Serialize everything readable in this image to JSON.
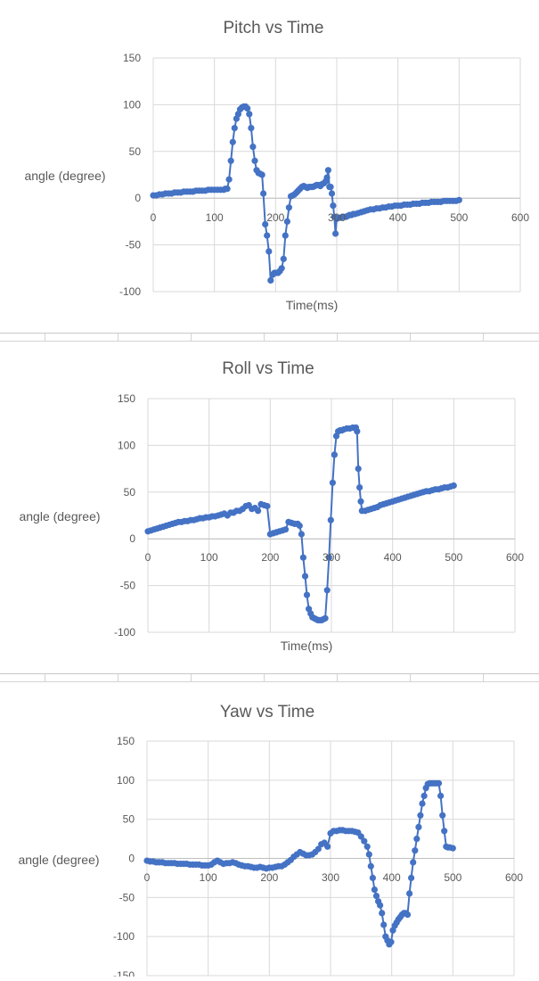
{
  "chart_data": [
    {
      "type": "scatter",
      "title": "Pitch vs Time",
      "xlabel": "Time(ms)",
      "ylabel": "angle (degree)",
      "xlim": [
        0,
        600
      ],
      "ylim": [
        -100,
        150
      ],
      "xticks": [
        0,
        100,
        200,
        300,
        400,
        500,
        600
      ],
      "yticks": [
        -100,
        -50,
        0,
        50,
        100,
        150
      ],
      "xtick_labels": [
        "0",
        "100",
        "200",
        "300",
        "400",
        "500",
        "600"
      ],
      "ytick_labels": [
        "-100",
        "-50",
        "0",
        "50",
        "100",
        "150"
      ],
      "grid": true,
      "legend": "none",
      "color": "#4472C4",
      "x": [
        0,
        5,
        10,
        15,
        20,
        25,
        30,
        35,
        40,
        45,
        50,
        55,
        60,
        65,
        70,
        75,
        80,
        85,
        90,
        95,
        100,
        105,
        110,
        115,
        118,
        121,
        124,
        127,
        130,
        133,
        136,
        139,
        142,
        145,
        148,
        151,
        154,
        157,
        160,
        163,
        166,
        169,
        172,
        175,
        178,
        180,
        183,
        186,
        189,
        192,
        195,
        198,
        201,
        204,
        207,
        210,
        213,
        216,
        219,
        222,
        225,
        228,
        231,
        234,
        237,
        240,
        243,
        246,
        249,
        252,
        255,
        258,
        261,
        264,
        267,
        270,
        273,
        276,
        279,
        282,
        284,
        286,
        288,
        290,
        292,
        294,
        296,
        298,
        300,
        303,
        306,
        309,
        312,
        315,
        318,
        321,
        324,
        327,
        330,
        335,
        340,
        345,
        350,
        355,
        360,
        365,
        370,
        375,
        380,
        385,
        390,
        395,
        400,
        405,
        410,
        415,
        420,
        425,
        430,
        435,
        440,
        445,
        450,
        455,
        460,
        465,
        470,
        475,
        480,
        485,
        490,
        495,
        500
      ],
      "y": [
        3,
        3,
        4,
        4,
        5,
        5,
        5,
        6,
        6,
        6,
        7,
        7,
        7,
        7,
        8,
        8,
        8,
        8,
        9,
        9,
        9,
        9,
        9,
        9,
        10,
        10,
        20,
        40,
        60,
        75,
        85,
        90,
        95,
        97,
        98,
        98,
        96,
        90,
        75,
        55,
        40,
        30,
        27,
        26,
        25,
        5,
        -28,
        -40,
        -57,
        -88,
        -82,
        -80,
        -80,
        -80,
        -78,
        -75,
        -65,
        -40,
        -25,
        -10,
        2,
        3,
        4,
        6,
        8,
        10,
        12,
        13,
        12,
        11,
        12,
        12,
        12,
        13,
        14,
        14,
        13,
        15,
        16,
        18,
        22,
        30,
        12,
        12,
        5,
        -8,
        -20,
        -38,
        -22,
        -21,
        -21,
        -20,
        -20,
        -20,
        -19,
        -18,
        -18,
        -17,
        -17,
        -16,
        -15,
        -14,
        -13,
        -12,
        -12,
        -11,
        -11,
        -10,
        -10,
        -9,
        -9,
        -8,
        -8,
        -8,
        -7,
        -7,
        -7,
        -6,
        -6,
        -6,
        -5,
        -5,
        -5,
        -4,
        -4,
        -4,
        -4,
        -3,
        -3,
        -3,
        -3,
        -3,
        -2
      ]
    },
    {
      "type": "scatter",
      "title": "Roll vs Time",
      "xlabel": "Time(ms)",
      "ylabel": "angle (degree)",
      "xlim": [
        0,
        600
      ],
      "ylim": [
        -100,
        150
      ],
      "xticks": [
        0,
        100,
        200,
        300,
        400,
        500,
        600
      ],
      "yticks": [
        -100,
        -50,
        0,
        50,
        100,
        150
      ],
      "xtick_labels": [
        "0",
        "100",
        "200",
        "300",
        "400",
        "500",
        "600"
      ],
      "ytick_labels": [
        "-100",
        "-50",
        "0",
        "50",
        "100",
        "150"
      ],
      "grid": true,
      "legend": "none",
      "color": "#4472C4",
      "x": [
        0,
        5,
        10,
        15,
        20,
        25,
        30,
        35,
        40,
        45,
        50,
        55,
        60,
        65,
        70,
        75,
        80,
        85,
        90,
        95,
        100,
        105,
        110,
        115,
        120,
        125,
        130,
        135,
        140,
        145,
        150,
        155,
        160,
        165,
        170,
        175,
        180,
        185,
        190,
        195,
        200,
        205,
        210,
        215,
        220,
        225,
        230,
        235,
        240,
        245,
        248,
        251,
        254,
        257,
        260,
        263,
        266,
        269,
        272,
        275,
        278,
        281,
        284,
        287,
        290,
        293,
        296,
        299,
        302,
        305,
        308,
        311,
        314,
        317,
        320,
        325,
        330,
        335,
        340,
        342,
        344,
        346,
        348,
        350,
        355,
        360,
        365,
        370,
        375,
        380,
        385,
        390,
        395,
        400,
        405,
        410,
        415,
        420,
        425,
        430,
        435,
        440,
        445,
        450,
        455,
        460,
        465,
        470,
        475,
        480,
        485,
        490,
        495,
        500
      ],
      "y": [
        8,
        9,
        10,
        11,
        12,
        13,
        14,
        15,
        16,
        17,
        18,
        18,
        19,
        19,
        20,
        20,
        21,
        22,
        22,
        23,
        23,
        24,
        24,
        25,
        26,
        27,
        25,
        28,
        28,
        30,
        30,
        32,
        35,
        36,
        32,
        33,
        30,
        37,
        36,
        35,
        5,
        6,
        7,
        8,
        9,
        10,
        18,
        17,
        16,
        16,
        14,
        5,
        -20,
        -40,
        -60,
        -75,
        -80,
        -84,
        -85,
        -86,
        -87,
        -87,
        -87,
        -86,
        -85,
        -55,
        -20,
        20,
        60,
        90,
        110,
        115,
        116,
        116,
        117,
        118,
        118,
        119,
        119,
        115,
        75,
        55,
        40,
        30,
        30,
        31,
        32,
        33,
        34,
        36,
        37,
        38,
        39,
        40,
        41,
        42,
        43,
        44,
        45,
        46,
        47,
        48,
        49,
        50,
        51,
        51,
        52,
        53,
        53,
        54,
        55,
        55,
        56,
        57
      ]
    },
    {
      "type": "scatter",
      "title": "Yaw vs Time",
      "xlabel": "",
      "ylabel": "angle (degree)",
      "xlim": [
        0,
        600
      ],
      "ylim": [
        -150,
        150
      ],
      "xticks": [
        0,
        100,
        200,
        300,
        400,
        500,
        600
      ],
      "yticks": [
        -150,
        -100,
        -50,
        0,
        50,
        100,
        150
      ],
      "xtick_labels": [
        "0",
        "100",
        "200",
        "300",
        "400",
        "500",
        "600"
      ],
      "ytick_labels": [
        "-150",
        "-100",
        "-50",
        "0",
        "50",
        "100",
        "150"
      ],
      "grid": true,
      "legend": "none",
      "color": "#4472C4",
      "x": [
        0,
        5,
        10,
        15,
        20,
        25,
        30,
        35,
        40,
        45,
        50,
        55,
        60,
        65,
        70,
        75,
        80,
        85,
        90,
        95,
        100,
        105,
        110,
        115,
        120,
        125,
        130,
        135,
        140,
        145,
        150,
        155,
        160,
        165,
        170,
        175,
        180,
        185,
        190,
        195,
        200,
        205,
        210,
        215,
        220,
        225,
        230,
        235,
        240,
        245,
        250,
        255,
        260,
        265,
        270,
        275,
        280,
        285,
        290,
        295,
        300,
        305,
        310,
        315,
        320,
        325,
        330,
        335,
        340,
        345,
        350,
        355,
        360,
        363,
        366,
        369,
        372,
        375,
        378,
        381,
        384,
        387,
        390,
        393,
        396,
        399,
        402,
        405,
        408,
        411,
        414,
        417,
        420,
        423,
        426,
        429,
        432,
        435,
        438,
        441,
        444,
        447,
        450,
        453,
        456,
        459,
        462,
        465,
        468,
        471,
        474,
        477,
        480,
        483,
        486,
        489,
        492,
        495,
        500
      ],
      "y": [
        -3,
        -4,
        -4,
        -5,
        -5,
        -5,
        -6,
        -6,
        -6,
        -6,
        -7,
        -7,
        -7,
        -7,
        -8,
        -8,
        -8,
        -8,
        -9,
        -9,
        -9,
        -8,
        -5,
        -3,
        -5,
        -7,
        -6,
        -6,
        -5,
        -6,
        -8,
        -9,
        -10,
        -10,
        -11,
        -12,
        -12,
        -11,
        -12,
        -13,
        -12,
        -12,
        -11,
        -10,
        -10,
        -8,
        -5,
        -2,
        2,
        5,
        8,
        6,
        4,
        4,
        5,
        8,
        12,
        18,
        20,
        15,
        32,
        35,
        35,
        36,
        36,
        35,
        35,
        35,
        34,
        33,
        28,
        22,
        15,
        5,
        -10,
        -25,
        -40,
        -48,
        -55,
        -60,
        -70,
        -85,
        -100,
        -105,
        -110,
        -107,
        -92,
        -86,
        -82,
        -78,
        -75,
        -72,
        -70,
        -70,
        -72,
        -45,
        -25,
        -5,
        10,
        25,
        40,
        55,
        70,
        80,
        90,
        95,
        96,
        96,
        96,
        96,
        96,
        96,
        80,
        55,
        35,
        15,
        14,
        14,
        13
      ]
    }
  ]
}
